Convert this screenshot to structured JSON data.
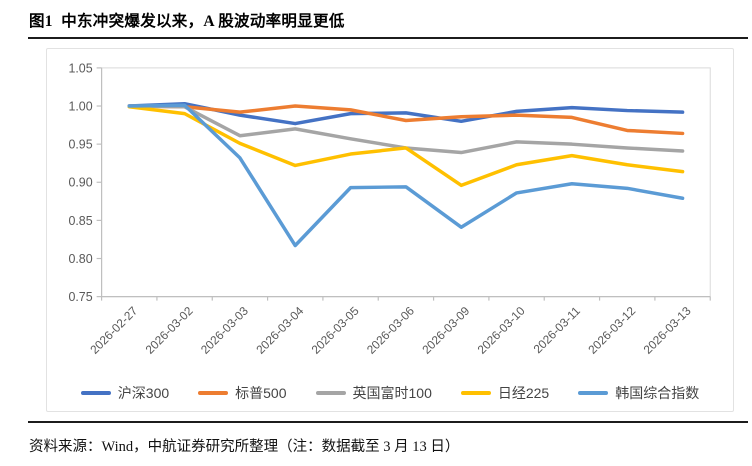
{
  "figure": {
    "title": "图1  中东冲突爆发以来，A 股波动率明显更低",
    "source_note": "资料来源：Wind，中航证券研究所整理（注：数据截至 3 月 13 日）"
  },
  "chart_data": {
    "type": "line",
    "title": "",
    "xlabel": "",
    "ylabel": "",
    "ylim": [
      0.75,
      1.05
    ],
    "y_ticks": [
      1.05,
      1.0,
      0.95,
      0.9,
      0.85,
      0.8,
      0.75
    ],
    "grid": false,
    "legend_position": "bottom",
    "axis_color": "#bfbfbf",
    "border_color": "#d9d9d9",
    "label_color": "#595959",
    "categories": [
      "2026-02-27",
      "2026-03-02",
      "2026-03-03",
      "2026-03-04",
      "2026-03-05",
      "2026-03-06",
      "2026-03-09",
      "2026-03-10",
      "2026-03-11",
      "2026-03-12",
      "2026-03-13"
    ],
    "series": [
      {
        "name": "沪深300",
        "color": "#4472C4",
        "values": [
          1.0,
          1.003,
          0.988,
          0.977,
          0.99,
          0.991,
          0.98,
          0.993,
          0.998,
          0.994,
          0.992
        ]
      },
      {
        "name": "标普500",
        "color": "#ED7D31",
        "values": [
          1.0,
          0.999,
          0.992,
          1.0,
          0.995,
          0.981,
          0.986,
          0.988,
          0.985,
          0.968,
          0.964
        ]
      },
      {
        "name": "英国富时100",
        "color": "#A5A5A5",
        "values": [
          1.0,
          0.999,
          0.961,
          0.97,
          0.957,
          0.945,
          0.939,
          0.953,
          0.95,
          0.945,
          0.941
        ]
      },
      {
        "name": "日经225",
        "color": "#FFC000",
        "values": [
          0.999,
          0.99,
          0.951,
          0.922,
          0.937,
          0.945,
          0.896,
          0.923,
          0.935,
          0.923,
          0.914
        ]
      },
      {
        "name": "韩国综合指数",
        "color": "#5B9BD5",
        "values": [
          1.0,
          1.001,
          0.932,
          0.817,
          0.893,
          0.894,
          0.841,
          0.886,
          0.898,
          0.892,
          0.879
        ]
      }
    ]
  }
}
